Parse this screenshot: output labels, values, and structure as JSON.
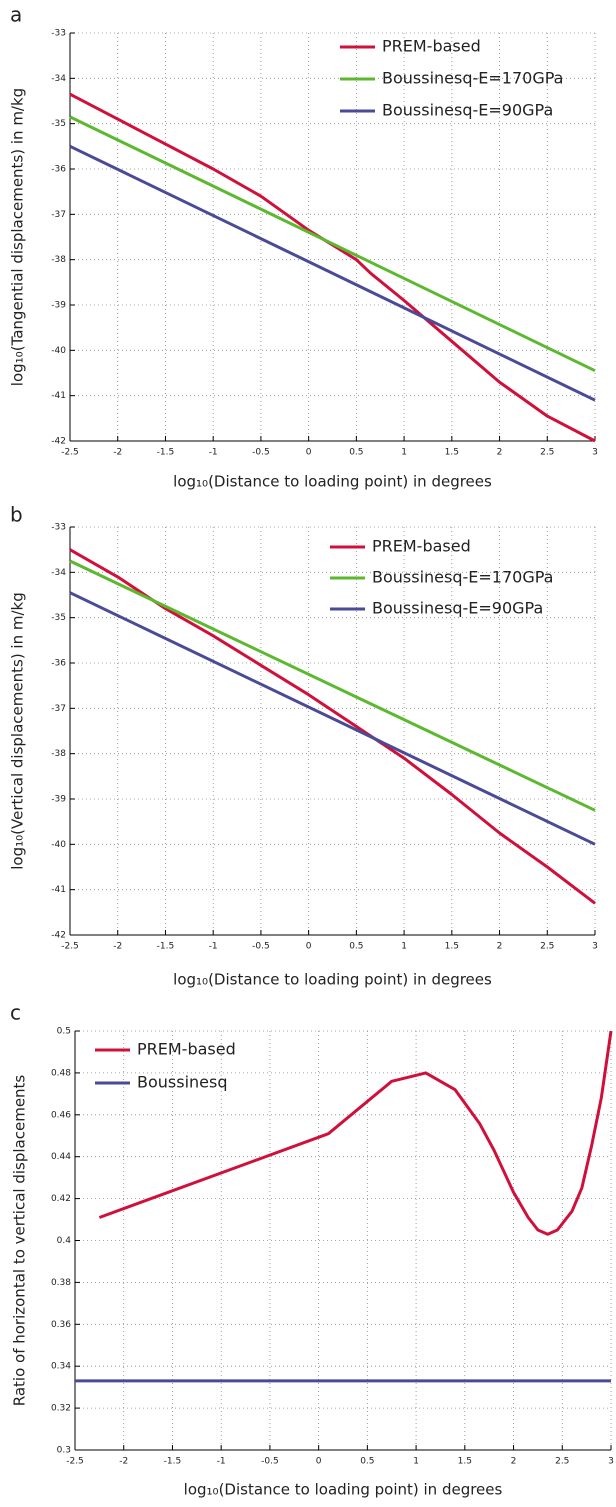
{
  "chart_data": [
    {
      "type": "line",
      "label": "a",
      "xlabel": "log₁₀(Distance to loading point) in degrees",
      "ylabel": "log₁₀(Tangential displacements) in m/kg",
      "xlim": [
        -2.5,
        3
      ],
      "xticks": [
        -2.5,
        -2,
        -1.5,
        -1,
        -0.5,
        0,
        0.5,
        1,
        1.5,
        2,
        2.5,
        3
      ],
      "ylim": [
        -42,
        -33
      ],
      "yticks": [
        -42,
        -41,
        -40,
        -39,
        -38,
        -37,
        -36,
        -35,
        -34,
        -33
      ],
      "grid": true,
      "legend": "upper right",
      "series": [
        {
          "name": "PREM-based",
          "color": "#d0103a",
          "x": [
            -2.5,
            -2,
            -1.5,
            -1,
            -0.5,
            0,
            0.5,
            0.65,
            1,
            1.5,
            2,
            2.5,
            3
          ],
          "values": [
            -34.35,
            -34.9,
            -35.45,
            -36.0,
            -36.6,
            -37.35,
            -38.0,
            -38.3,
            -38.9,
            -39.8,
            -40.7,
            -41.45,
            -42.0
          ]
        },
        {
          "name": "Boussinesq-E=170GPa",
          "color": "#5cb82e",
          "x": [
            -2.5,
            3
          ],
          "values": [
            -34.85,
            -40.45
          ]
        },
        {
          "name": "Boussinesq-E=90GPa",
          "color": "#4a4a96",
          "x": [
            -2.5,
            3
          ],
          "values": [
            -35.5,
            -41.1
          ]
        }
      ]
    },
    {
      "type": "line",
      "label": "b",
      "xlabel": "log₁₀(Distance to loading point) in degrees",
      "ylabel": "log₁₀(Vertical displacements) in m/kg",
      "xlim": [
        -2.5,
        3
      ],
      "xticks": [
        -2.5,
        -2,
        -1.5,
        -1,
        -0.5,
        0,
        0.5,
        1,
        1.5,
        2,
        2.5,
        3
      ],
      "ylim": [
        -42,
        -33
      ],
      "yticks": [
        -42,
        -41,
        -40,
        -39,
        -38,
        -37,
        -36,
        -35,
        -34,
        -33
      ],
      "grid": true,
      "legend": "upper right",
      "series": [
        {
          "name": "PREM-based",
          "color": "#d0103a",
          "x": [
            -2.5,
            -2,
            -1.5,
            -1,
            -0.5,
            0,
            0.5,
            1,
            1.5,
            2,
            2.5,
            3
          ],
          "values": [
            -33.5,
            -34.1,
            -34.8,
            -35.4,
            -36.05,
            -36.7,
            -37.4,
            -38.1,
            -38.9,
            -39.75,
            -40.5,
            -41.3
          ]
        },
        {
          "name": "Boussinesq-E=170GPa",
          "color": "#5cb82e",
          "x": [
            -2.5,
            3
          ],
          "values": [
            -33.75,
            -39.25
          ]
        },
        {
          "name": "Boussinesq-E=90GPa",
          "color": "#4a4a96",
          "x": [
            -2.5,
            3
          ],
          "values": [
            -34.45,
            -40.0
          ]
        }
      ]
    },
    {
      "type": "line",
      "label": "c",
      "xlabel": "log₁₀(Distance to loading point) in degrees",
      "ylabel": "Ratio of horizontal to vertical displacements",
      "xlim": [
        -2.5,
        3
      ],
      "xticks": [
        -2.5,
        -2,
        -1.5,
        -1,
        -0.5,
        0,
        0.5,
        1,
        1.5,
        2,
        2.5,
        3
      ],
      "ylim": [
        0.3,
        0.5
      ],
      "yticks": [
        0.3,
        0.32,
        0.34,
        0.36,
        0.38,
        0.4,
        0.42,
        0.44,
        0.46,
        0.48,
        0.5
      ],
      "grid": true,
      "legend": "upper left",
      "series": [
        {
          "name": "PREM-based",
          "color": "#d0103a",
          "x": [
            -2.25,
            0.1,
            0.75,
            1.1,
            1.4,
            1.65,
            1.8,
            2.0,
            2.15,
            2.25,
            2.35,
            2.45,
            2.6,
            2.7,
            2.8,
            2.9,
            3.0
          ],
          "values": [
            0.411,
            0.451,
            0.476,
            0.48,
            0.472,
            0.456,
            0.443,
            0.423,
            0.411,
            0.405,
            0.403,
            0.405,
            0.414,
            0.425,
            0.445,
            0.468,
            0.5
          ]
        },
        {
          "name": "Boussinesq",
          "color": "#4a4a96",
          "x": [
            -2.5,
            3
          ],
          "values": [
            0.333,
            0.333
          ]
        }
      ]
    }
  ]
}
